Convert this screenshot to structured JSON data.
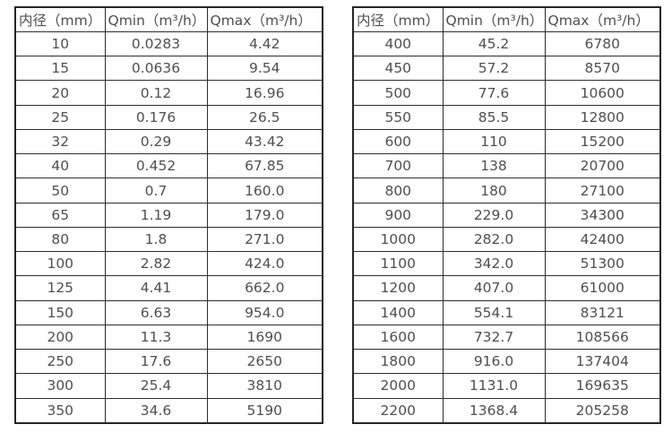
{
  "left_table": {
    "headers": [
      "内径（mm）",
      "Qmin（m³/h）",
      "Qmax（m³/h）"
    ],
    "rows": [
      [
        "10",
        "0.0283",
        "4.42"
      ],
      [
        "15",
        "0.0636",
        "9.54"
      ],
      [
        "20",
        "0.12",
        "16.96"
      ],
      [
        "25",
        "0.176",
        "26.5"
      ],
      [
        "32",
        "0.29",
        "43.42"
      ],
      [
        "40",
        "0.452",
        "67.85"
      ],
      [
        "50",
        "0.7",
        "160.0"
      ],
      [
        "65",
        "1.19",
        "179.0"
      ],
      [
        "80",
        "1.8",
        "271.0"
      ],
      [
        "100",
        "2.82",
        "424.0"
      ],
      [
        "125",
        "4.41",
        "662.0"
      ],
      [
        "150",
        "6.63",
        "954.0"
      ],
      [
        "200",
        "11.3",
        "1690"
      ],
      [
        "250",
        "17.6",
        "2650"
      ],
      [
        "300",
        "25.4",
        "3810"
      ],
      [
        "350",
        "34.6",
        "5190"
      ]
    ]
  },
  "right_table": {
    "headers": [
      "内径（mm）",
      "Qmin（m³/h）",
      "Qmax（m³/h）"
    ],
    "rows": [
      [
        "400",
        "45.2",
        "6780"
      ],
      [
        "450",
        "57.2",
        "8570"
      ],
      [
        "500",
        "77.6",
        "10600"
      ],
      [
        "550",
        "85.5",
        "12800"
      ],
      [
        "600",
        "110",
        "15200"
      ],
      [
        "700",
        "138",
        "20700"
      ],
      [
        "800",
        "180",
        "27100"
      ],
      [
        "900",
        "229.0",
        "34300"
      ],
      [
        "1000",
        "282.0",
        "42400"
      ],
      [
        "1100",
        "342.0",
        "51300"
      ],
      [
        "1200",
        "407.0",
        "61000"
      ],
      [
        "1400",
        "554.1",
        "83121"
      ],
      [
        "1600",
        "732.7",
        "108566"
      ],
      [
        "1800",
        "916.0",
        "137404"
      ],
      [
        "2000",
        "1131.0",
        "169635"
      ],
      [
        "2200",
        "1368.4",
        "205258"
      ]
    ]
  },
  "colors": {
    "border": "#2e2e2e",
    "text": "#4f4f4f",
    "background": "#ffffff"
  }
}
